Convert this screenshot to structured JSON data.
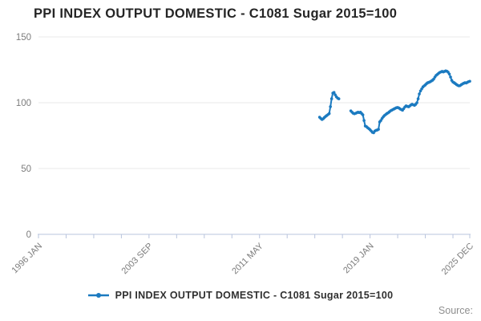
{
  "header": {
    "title": "PPI INDEX OUTPUT DOMESTIC - C1081 Sugar 2015=100"
  },
  "legend": {
    "label": "PPI INDEX OUTPUT DOMESTIC - C1081 Sugar 2015=100"
  },
  "source": {
    "label": "Source:"
  },
  "colors": {
    "line": "#1b7ac0",
    "axis": "#b9c4dd",
    "grid": "#e8e8e8",
    "tick_text": "#7c7c7c",
    "title_text": "#252525"
  },
  "chart_data": {
    "type": "line",
    "title": "PPI INDEX OUTPUT DOMESTIC - C1081 Sugar 2015=100",
    "xlabel": "",
    "ylabel": "",
    "ylim": [
      0,
      150
    ],
    "y_ticks": [
      0,
      50,
      100,
      150
    ],
    "grid": "horizontal",
    "legend_position": "bottom",
    "x_unit": "months since 1996 JAN",
    "x_total_months": 359,
    "x_tick_labels": [
      {
        "label": "1996 JAN",
        "month": 0
      },
      {
        "label": "2003 SEP",
        "month": 92
      },
      {
        "label": "2011 MAY",
        "month": 184
      },
      {
        "label": "2019 JAN",
        "month": 276
      },
      {
        "label": "2025 DEC",
        "month": 359
      }
    ],
    "minor_tick_months": [
      0,
      23,
      46,
      69,
      92,
      115,
      138,
      161,
      184,
      207,
      230,
      253,
      276,
      299,
      322,
      345,
      359
    ],
    "series": [
      {
        "name": "PPI INDEX OUTPUT DOMESTIC - C1081 Sugar 2015=100",
        "color": "#1b7ac0",
        "marker": "circle",
        "segments": [
          {
            "start": "2015 JUL",
            "start_month": 234,
            "values": [
              89.0,
              88.0,
              87.3,
              87.8,
              88.8,
              89.6,
              90.3,
              91.0,
              91.8,
              97.0,
              103.0,
              107.3,
              107.8,
              106.0,
              104.5,
              103.5,
              103.0
            ]
          },
          {
            "start": "2017 SEP",
            "start_month": 260,
            "values": [
              93.8,
              92.8,
              92.0,
              91.6,
              92.0,
              92.4,
              92.8,
              92.5,
              92.8,
              91.8,
              90.8,
              86.5,
              82.3,
              81.8,
              81.0,
              80.3,
              79.5,
              78.5,
              77.5,
              77.2,
              78.5,
              79.0,
              79.3,
              79.8,
              85.4,
              86.5,
              88.0,
              89.3,
              90.3,
              91.0,
              91.8,
              92.3,
              93.0,
              93.8,
              94.3,
              94.8,
              95.3,
              95.8,
              96.2,
              96.4,
              96.0,
              95.3,
              94.8,
              94.3,
              95.5,
              96.8,
              97.6,
              97.2,
              96.9,
              97.5,
              98.3,
              98.8,
              98.4,
              98.0,
              98.8,
              100.0,
              103.0,
              106.7,
              109.0,
              110.5,
              112.0,
              112.8,
              113.5,
              114.5,
              115.2,
              115.5,
              115.9,
              116.5,
              117.1,
              118.0,
              119.5,
              120.8,
              121.5,
              122.3,
              123.0,
              123.4,
              123.8,
              123.4,
              123.8,
              124.2,
              123.9,
              123.2,
              121.8,
              119.5,
              117.0,
              115.7,
              115.2,
              114.5,
              113.8,
              113.2,
              112.8,
              113.0,
              113.8,
              114.3,
              114.8,
              115.2,
              115.0,
              115.5,
              116.0,
              116.3
            ]
          }
        ]
      }
    ]
  }
}
